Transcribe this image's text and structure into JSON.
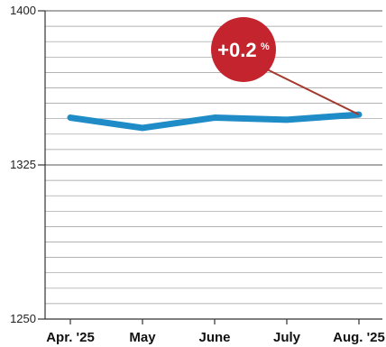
{
  "chart_data": {
    "type": "line",
    "categories": [
      "Apr. '25",
      "May",
      "June",
      "July",
      "Aug. '25"
    ],
    "series": [
      {
        "values": [
          1348,
          1343,
          1348,
          1347,
          1349.5
        ],
        "color": "#1f8cc8"
      }
    ],
    "ylim": [
      1250,
      1400
    ],
    "yticks": [
      1400,
      1325,
      1250
    ],
    "grid": true,
    "callout": {
      "label_main": "+0.2",
      "label_suffix": "%",
      "target_category": "Aug. '25",
      "color": "#c4242e",
      "leader_color": "#a33a2e"
    }
  }
}
